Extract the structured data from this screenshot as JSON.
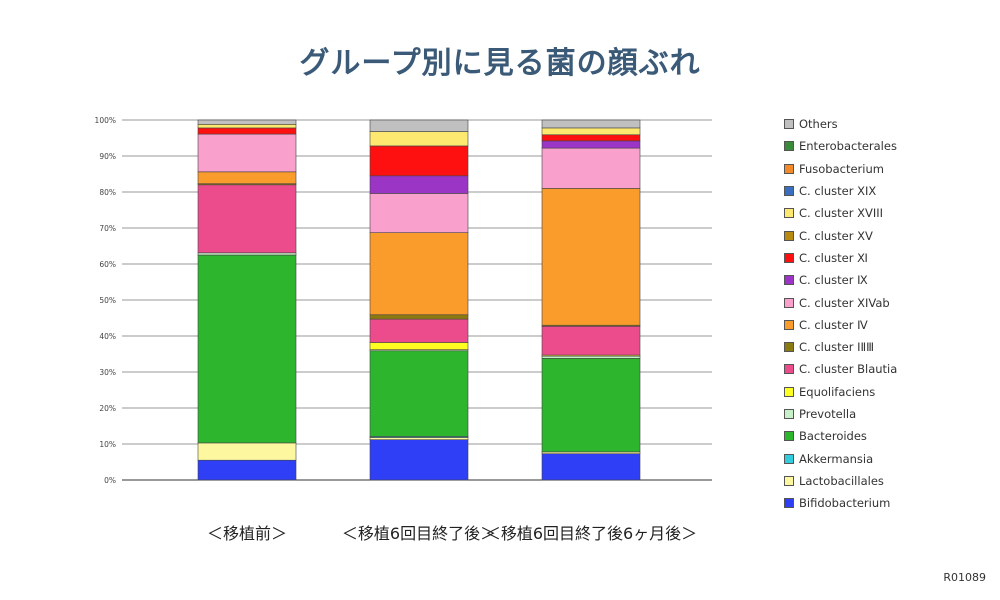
{
  "title": "グループ別に見る菌の顔ぶれ",
  "footnote": "R01089",
  "chart_data": {
    "type": "bar",
    "stacked": true,
    "title": "グループ別に見る菌の顔ぶれ",
    "categories": [
      "＜移植前＞",
      "＜移植6回目終了後＞",
      "＜移植6回目終了後6ヶ月後＞"
    ],
    "ylim": [
      0,
      100
    ],
    "yticks": [
      "0%",
      "10%",
      "20%",
      "30%",
      "40%",
      "50%",
      "60%",
      "70%",
      "80%",
      "90%",
      "100%"
    ],
    "grid": true,
    "legend_position": "right",
    "series": [
      {
        "name": "Bifidobacterium",
        "color": "#2f3ff5",
        "values": [
          5.5,
          11.2,
          7.3
        ]
      },
      {
        "name": "Lactobacillales",
        "color": "#fdf8a0",
        "values": [
          4.8,
          0.6,
          0.5
        ]
      },
      {
        "name": "Akkermansia",
        "color": "#33ccdd",
        "values": [
          0.0,
          0.3,
          0.0
        ]
      },
      {
        "name": "Bacteroides",
        "color": "#2eb52e",
        "values": [
          52.2,
          23.8,
          26.0
        ]
      },
      {
        "name": "Prevotella",
        "color": "#c8f0c8",
        "values": [
          0.6,
          0.3,
          0.6
        ]
      },
      {
        "name": "Equolifaciens",
        "color": "#ffff22",
        "values": [
          0.0,
          2.0,
          0.3
        ]
      },
      {
        "name": "C. cluster Blautia",
        "color": "#ec4c8c",
        "values": [
          18.9,
          6.5,
          8.0
        ]
      },
      {
        "name": "C. cluster ⅠⅡⅢ",
        "color": "#8b7a10",
        "values": [
          0.3,
          1.2,
          0.3
        ]
      },
      {
        "name": "C. cluster Ⅳ",
        "color": "#f99c2c",
        "values": [
          3.3,
          22.8,
          38.0
        ]
      },
      {
        "name": "C. cluster XIVab",
        "color": "#f9a0cc",
        "values": [
          10.5,
          10.9,
          11.2
        ]
      },
      {
        "name": "C. cluster Ⅸ",
        "color": "#9b35c5",
        "values": [
          0.0,
          4.9,
          2.0
        ]
      },
      {
        "name": "C. cluster Ⅺ",
        "color": "#ff1010",
        "values": [
          1.7,
          8.3,
          1.7
        ]
      },
      {
        "name": "C. cluster XV",
        "color": "#b88a10",
        "values": [
          0.0,
          0.0,
          0.0
        ]
      },
      {
        "name": "C. cluster XVIII",
        "color": "#fde870",
        "values": [
          1.0,
          4.0,
          1.9
        ]
      },
      {
        "name": "C. cluster XIX",
        "color": "#3a6fc0",
        "values": [
          0.0,
          0.0,
          0.0
        ]
      },
      {
        "name": "Fusobacterium",
        "color": "#f08a2a",
        "values": [
          0.0,
          0.0,
          0.0
        ]
      },
      {
        "name": "Enterobacterales",
        "color": "#3a8a3a",
        "values": [
          0.0,
          0.0,
          0.0
        ]
      },
      {
        "name": "Others",
        "color": "#c0c0c0",
        "values": [
          1.2,
          3.2,
          2.2
        ]
      }
    ]
  }
}
